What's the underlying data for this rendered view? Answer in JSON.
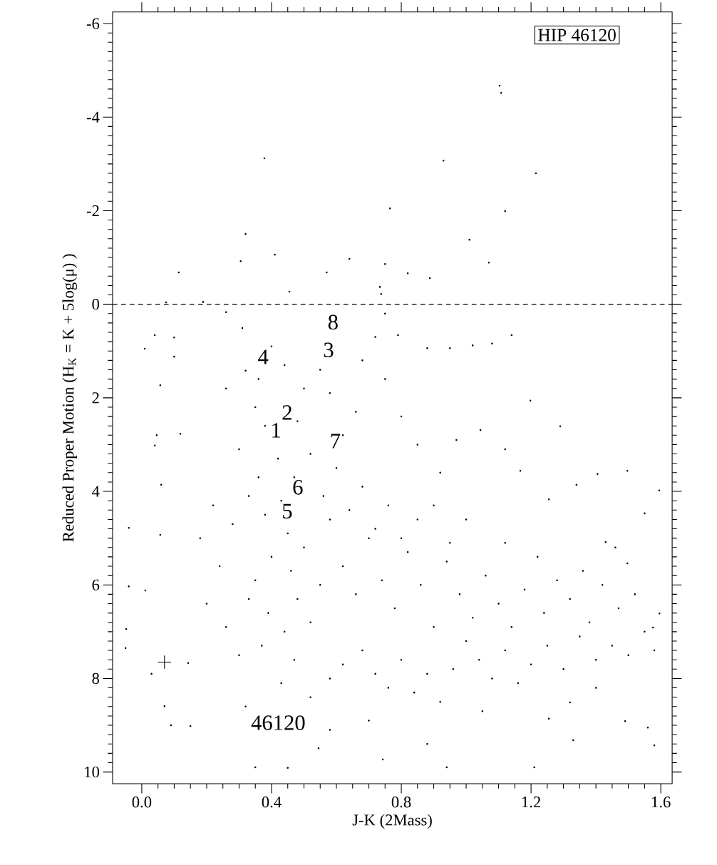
{
  "chart_data": {
    "type": "scatter",
    "title": "HIP 46120",
    "xlabel": "J-K (2Mass)",
    "ylabel": "Reduced Proper Motion (H$_{K}$ = K + 5log(μ) )",
    "xlim": [
      -0.09,
      1.635
    ],
    "ylim": [
      10.25,
      -6.25
    ],
    "xticks": [
      {
        "value": 0.0,
        "label": "0.0"
      },
      0.4,
      {
        "value": 0.8,
        "label": "0.8"
      },
      1.2,
      1.6
    ],
    "yticks": [
      -6,
      -4,
      -2,
      0,
      2,
      4,
      6,
      8,
      10
    ],
    "grid": false,
    "marker": "circle",
    "ref_lines": [
      {
        "axis": "y",
        "value": 0,
        "line_style": "dashed",
        "color": "#000000"
      }
    ],
    "annotations": [
      "8",
      "3",
      "4",
      "2",
      "1",
      "7",
      "6",
      "5",
      "46120"
    ],
    "series": [
      {
        "color": "#000000",
        "x": [
          1.103,
          1.108,
          0.378,
          0.93,
          1.215,
          0.765,
          1.12,
          1.01,
          0.32,
          1.07,
          0.114,
          0.41,
          0.455,
          0.57,
          0.64,
          0.75,
          0.82,
          0.888,
          0.738,
          0.734,
          0.305,
          0.075,
          0.189,
          0.26,
          0.04,
          0.1,
          0.009,
          0.75,
          0.79,
          0.88,
          0.95,
          1.02,
          1.08,
          1.14,
          0.1,
          0.057,
          0.046,
          0.119,
          1.198,
          1.29,
          1.044,
          0.26,
          0.31,
          0.32,
          0.04,
          0.06,
          -0.04,
          0.057,
          -0.04,
          0.011,
          -0.048,
          -0.05,
          0.03,
          0.07,
          0.09,
          0.15,
          0.143,
          0.35,
          0.45,
          0.545,
          0.743,
          0.94,
          1.21,
          1.58,
          1.56,
          1.49,
          1.33,
          1.32,
          1.255,
          1.576,
          1.596,
          1.595,
          1.497,
          1.55,
          1.405,
          1.34,
          1.497,
          1.43,
          1.255,
          1.167,
          1.12,
          0.35,
          0.38,
          0.42,
          0.36,
          0.33,
          0.38,
          0.45,
          0.5,
          0.4,
          0.35,
          0.33,
          0.39,
          0.44,
          0.37,
          0.47,
          0.43,
          0.52,
          0.58,
          0.62,
          0.68,
          0.72,
          0.76,
          0.8,
          0.84,
          0.88,
          0.92,
          0.96,
          1.0,
          1.04,
          1.08,
          1.12,
          1.16,
          1.2,
          1.25,
          1.3,
          1.35,
          1.4,
          1.45,
          1.5,
          1.55,
          1.58,
          1.52,
          1.47,
          1.42,
          1.38,
          1.32,
          1.28,
          1.24,
          1.18,
          1.14,
          1.1,
          1.06,
          1.02,
          0.98,
          0.94,
          0.9,
          0.86,
          0.82,
          0.78,
          0.74,
          0.7,
          0.66,
          0.62,
          0.58,
          0.55,
          0.52,
          0.48,
          0.46,
          0.43,
          0.47,
          0.52,
          0.56,
          0.6,
          0.64,
          0.68,
          0.72,
          0.76,
          0.8,
          0.85,
          0.9,
          0.95,
          1.0,
          0.62,
          0.66,
          0.58,
          0.55,
          0.5,
          0.48,
          0.44,
          0.4,
          0.36,
          0.68,
          0.72,
          0.75,
          0.8,
          0.85,
          0.92,
          0.97,
          0.28,
          0.24,
          0.2,
          0.26,
          0.3,
          0.22,
          0.18,
          0.3,
          0.32,
          0.58,
          0.7,
          0.88,
          1.05,
          1.4,
          1.46,
          1.36,
          1.22,
          1.12
        ],
        "values": [
          -4.67,
          -4.52,
          -3.12,
          -3.07,
          -2.8,
          -2.05,
          -1.99,
          -1.38,
          -1.5,
          -0.89,
          -0.68,
          -1.06,
          -0.27,
          -0.68,
          -0.97,
          -0.86,
          -0.66,
          -0.56,
          -0.22,
          -0.37,
          -0.92,
          -0.04,
          -0.05,
          0.17,
          0.66,
          0.71,
          0.95,
          0.2,
          0.66,
          0.94,
          0.94,
          0.88,
          0.84,
          0.66,
          1.12,
          1.73,
          2.8,
          2.77,
          2.06,
          2.61,
          2.69,
          1.8,
          0.51,
          1.42,
          3.02,
          3.86,
          4.78,
          4.93,
          6.03,
          6.12,
          6.94,
          7.35,
          7.9,
          8.59,
          9.0,
          9.02,
          7.67,
          9.9,
          9.91,
          9.49,
          9.73,
          9.9,
          9.9,
          9.43,
          9.05,
          8.91,
          9.32,
          8.51,
          8.86,
          6.91,
          6.61,
          3.98,
          3.56,
          4.47,
          3.63,
          3.86,
          5.54,
          5.08,
          4.17,
          3.56,
          3.1,
          2.2,
          2.6,
          3.3,
          3.7,
          4.1,
          4.5,
          4.9,
          5.2,
          5.4,
          5.9,
          6.3,
          6.6,
          7.0,
          7.3,
          7.6,
          8.1,
          8.4,
          8.0,
          7.7,
          7.4,
          7.9,
          8.2,
          7.6,
          8.3,
          7.9,
          8.5,
          7.8,
          7.2,
          7.6,
          8.0,
          7.4,
          8.1,
          7.7,
          7.3,
          7.8,
          7.1,
          7.6,
          7.3,
          7.5,
          7.0,
          7.4,
          6.2,
          6.5,
          6.0,
          6.8,
          6.3,
          5.9,
          6.6,
          6.1,
          6.9,
          6.4,
          5.8,
          6.7,
          6.2,
          5.5,
          6.9,
          6.0,
          5.3,
          6.5,
          5.9,
          5.0,
          6.2,
          5.6,
          4.6,
          6.0,
          6.8,
          6.3,
          5.7,
          4.2,
          3.7,
          3.2,
          4.1,
          3.5,
          4.4,
          3.9,
          4.8,
          4.3,
          5.0,
          4.6,
          4.3,
          5.1,
          4.6,
          2.8,
          2.3,
          1.9,
          1.4,
          1.8,
          2.5,
          1.3,
          0.9,
          1.6,
          1.2,
          0.7,
          1.6,
          2.4,
          3.0,
          3.6,
          2.9,
          4.7,
          5.6,
          6.4,
          6.9,
          7.5,
          4.3,
          5.0,
          3.1,
          8.6,
          9.1,
          8.9,
          9.4,
          8.7,
          8.2,
          5.2,
          5.7,
          5.4,
          5.1
        ]
      },
      {
        "color": "#000000",
        "marker": "cross",
        "x": [
          0.07
        ],
        "values": [
          7.65
        ]
      }
    ]
  }
}
